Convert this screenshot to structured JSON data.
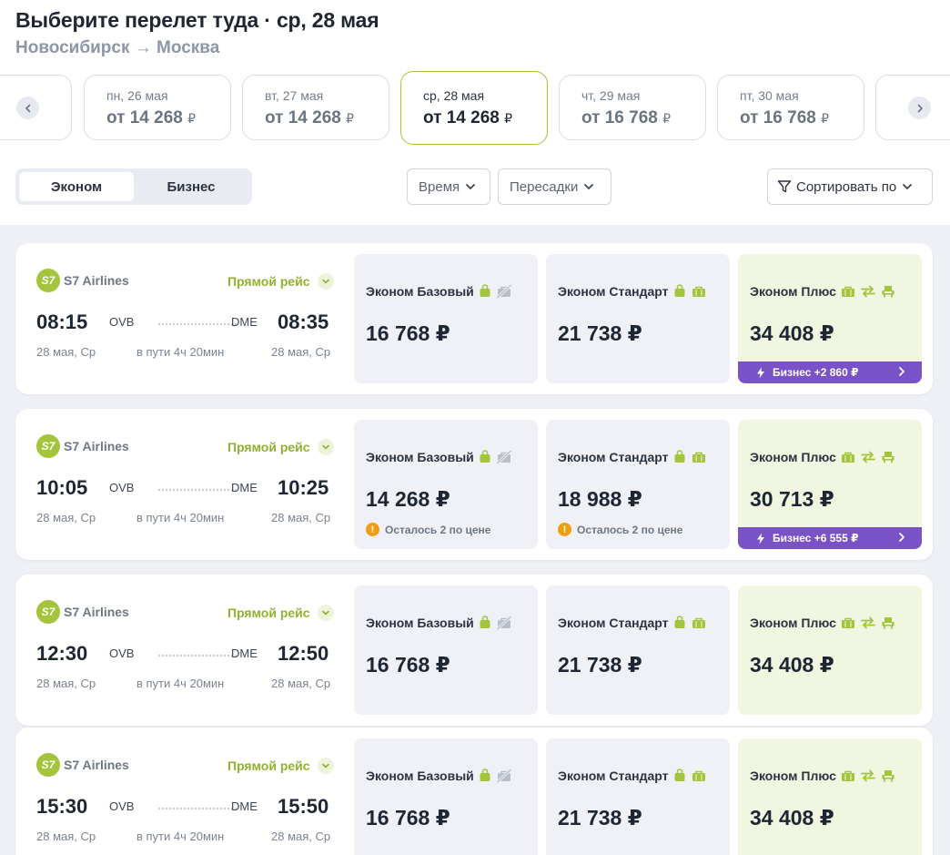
{
  "header": {
    "title": "Выберите перелет туда · ср, 28 мая",
    "route": "Новосибирск → Москва"
  },
  "dates": [
    {
      "day": "пн, 26 мая",
      "price": "от 14 268",
      "selected": false
    },
    {
      "day": "вт, 27 мая",
      "price": "от 14 268",
      "selected": false
    },
    {
      "day": "ср, 28 мая",
      "price": "от 14 268",
      "selected": true
    },
    {
      "day": "чт, 29 мая",
      "price": "от 16 768",
      "selected": false
    },
    {
      "day": "пт, 30 мая",
      "price": "от 16 768",
      "selected": false
    }
  ],
  "currency": "₽",
  "cabin": {
    "economy": "Эконом",
    "business": "Бизнес",
    "selected": "economy"
  },
  "filters": {
    "time": "Время",
    "transfers": "Пересадки",
    "sort": "Сортировать по"
  },
  "colors": {
    "accent_green": "#a3c43b",
    "business_purple": "#7a52c7",
    "warning": "#f39c12"
  },
  "flights": [
    {
      "airline": "S7 Airlines",
      "logo_text": "S7",
      "direct": "Прямой рейс",
      "dep_time": "08:15",
      "dep_airport": "OVB",
      "arr_airport": "DME",
      "arr_time": "08:35",
      "dep_date": "28 мая, Ср",
      "duration": "в пути 4ч 20мин",
      "arr_date": "28 мая, Ср",
      "fares": [
        {
          "name": "Эконом Базовый",
          "price": "16 768 ₽",
          "note": ""
        },
        {
          "name": "Эконом Стандарт",
          "price": "21 738 ₽",
          "note": ""
        },
        {
          "name": "Эконом Плюс",
          "price": "34 408 ₽",
          "note": ""
        }
      ],
      "business_upgrade": "Бизнес +2 860 ₽"
    },
    {
      "airline": "S7 Airlines",
      "logo_text": "S7",
      "direct": "Прямой рейс",
      "dep_time": "10:05",
      "dep_airport": "OVB",
      "arr_airport": "DME",
      "arr_time": "10:25",
      "dep_date": "28 мая, Ср",
      "duration": "в пути 4ч 20мин",
      "arr_date": "28 мая, Ср",
      "fares": [
        {
          "name": "Эконом Базовый",
          "price": "14 268 ₽",
          "note": "Осталось 2 по цене"
        },
        {
          "name": "Эконом Стандарт",
          "price": "18 988 ₽",
          "note": "Осталось 2 по цене"
        },
        {
          "name": "Эконом Плюс",
          "price": "30 713 ₽",
          "note": ""
        }
      ],
      "business_upgrade": "Бизнес +6 555 ₽"
    },
    {
      "airline": "S7 Airlines",
      "logo_text": "S7",
      "direct": "Прямой рейс",
      "dep_time": "12:30",
      "dep_airport": "OVB",
      "arr_airport": "DME",
      "arr_time": "12:50",
      "dep_date": "28 мая, Ср",
      "duration": "в пути 4ч 20мин",
      "arr_date": "28 мая, Ср",
      "fares": [
        {
          "name": "Эконом Базовый",
          "price": "16 768 ₽",
          "note": ""
        },
        {
          "name": "Эконом Стандарт",
          "price": "21 738 ₽",
          "note": ""
        },
        {
          "name": "Эконом Плюс",
          "price": "34 408 ₽",
          "note": ""
        }
      ],
      "business_upgrade": ""
    },
    {
      "airline": "S7 Airlines",
      "logo_text": "S7",
      "direct": "Прямой рейс",
      "dep_time": "15:30",
      "dep_airport": "OVB",
      "arr_airport": "DME",
      "arr_time": "15:50",
      "dep_date": "28 мая, Ср",
      "duration": "в пути 4ч 20мин",
      "arr_date": "28 мая, Ср",
      "fares": [
        {
          "name": "Эконом Базовый",
          "price": "16 768 ₽",
          "note": ""
        },
        {
          "name": "Эконом Стандарт",
          "price": "21 738 ₽",
          "note": ""
        },
        {
          "name": "Эконом Плюс",
          "price": "34 408 ₽",
          "note": ""
        }
      ],
      "business_upgrade": ""
    }
  ]
}
